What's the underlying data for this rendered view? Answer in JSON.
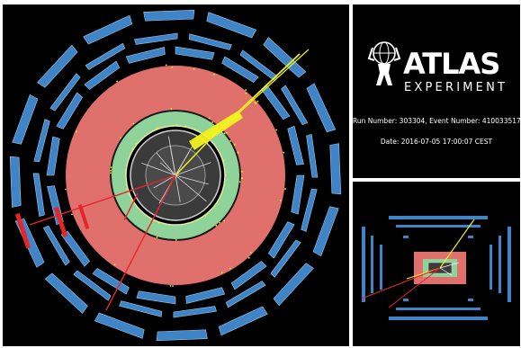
{
  "branding": {
    "logo_word": "ATLAS",
    "logo_subtitle": "EXPERIMENT"
  },
  "event": {
    "run_event_text": "Run Number: 303304, Event Number: 4100335171",
    "date_text": "Date: 2016-07-05 17:00:07 CEST"
  },
  "colors": {
    "background": "#000000",
    "muon_chambers": "#3f84c6",
    "calorimeter_hadronic": "#e0706c",
    "calorimeter_em": "#8fd39a",
    "inner_detector": "#3b3b3b",
    "track_yellow": "#f2f21d",
    "track_red": "#e8242b",
    "tracks_white": "#d8d8d8"
  }
}
